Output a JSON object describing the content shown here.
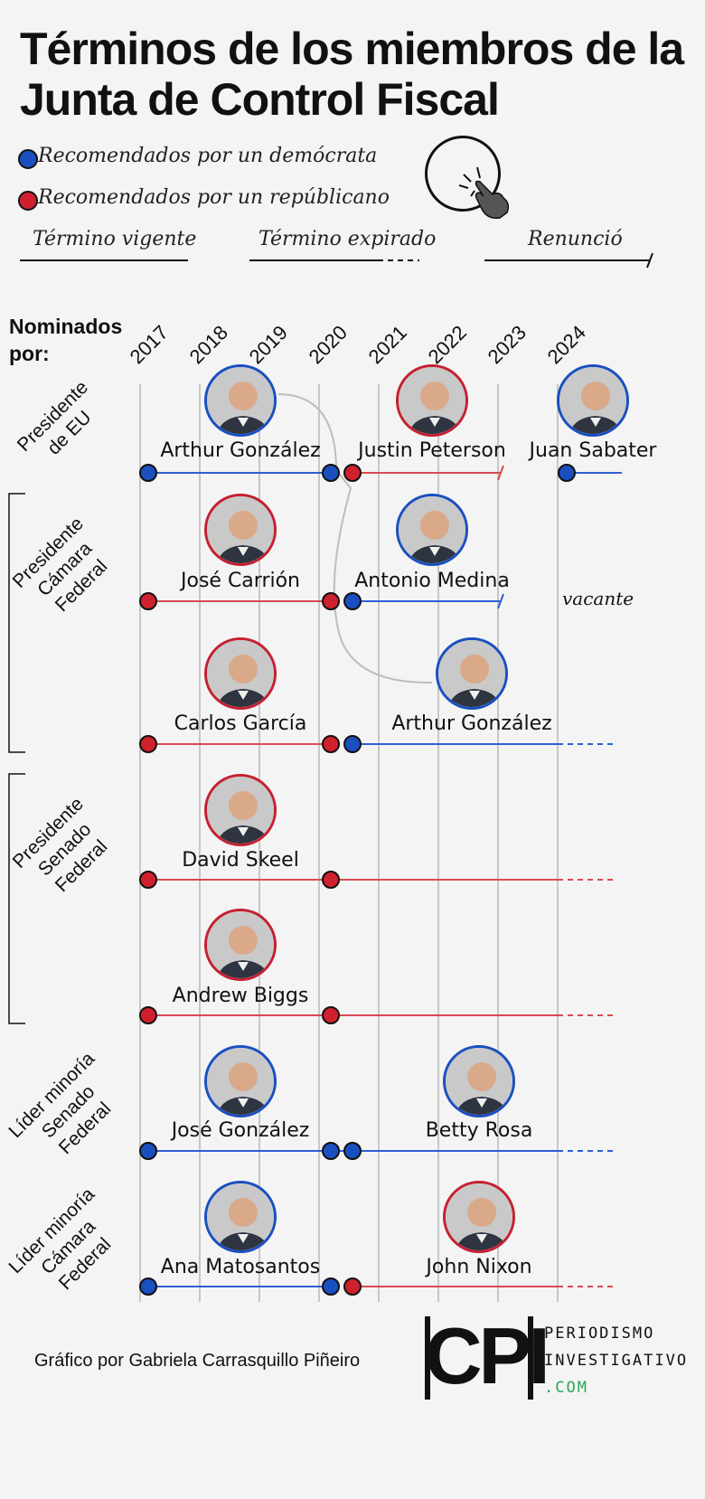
{
  "title_line1": "Términos de los miembros de la",
  "title_line2": "Junta de Control Fiscal",
  "legend": {
    "democrat": "Recomendados por un demócrata",
    "republican": "Recomendados por un repúblicano",
    "current": "Término vigente",
    "expired": "Término expirado",
    "resigned": "Renunció"
  },
  "nominated_by_line1": "Nominados",
  "nominated_by_line2": "por:",
  "years": [
    "2017",
    "2018",
    "2019",
    "2020",
    "2021",
    "2022",
    "2023",
    "2024"
  ],
  "groups": [
    {
      "line1": "Presidente",
      "line2": "de EU",
      "line3": ""
    },
    {
      "line1": "Presidente",
      "line2": "Cámara",
      "line3": "Federal"
    },
    {
      "line1": "Presidente",
      "line2": "Senado",
      "line3": "Federal"
    },
    {
      "line1": "Líder minoría",
      "line2": "Senado",
      "line3": "Federal"
    },
    {
      "line1": "Líder minoría",
      "line2": "Cámara",
      "line3": "Federal"
    }
  ],
  "members": [
    {
      "name": "Arthur González",
      "party": "democrat"
    },
    {
      "name": "Justin Peterson",
      "party": "republican"
    },
    {
      "name": "Juan Sabater",
      "party": "democrat"
    },
    {
      "name": "José Carrión",
      "party": "republican"
    },
    {
      "name": "Antonio Medina",
      "party": "democrat"
    },
    {
      "name": "Carlos García",
      "party": "republican"
    },
    {
      "name": "Arthur González",
      "party": "democrat"
    },
    {
      "name": "David Skeel",
      "party": "republican"
    },
    {
      "name": "Andrew Biggs",
      "party": "republican"
    },
    {
      "name": "José González",
      "party": "democrat"
    },
    {
      "name": "Betty Rosa",
      "party": "democrat"
    },
    {
      "name": "Ana Matosantos",
      "party": "democrat"
    },
    {
      "name": "John Nixon",
      "party": "republican"
    }
  ],
  "vacante": "vacante",
  "credit": "Gráfico por Gabriela Carrasquillo Piñeiro",
  "logo": {
    "letters": "CPI",
    "line1": "PERIODISMO",
    "line2": "INVESTIGATIVO",
    "line3": ".COM"
  },
  "colors": {
    "democrat": "#1a4fc0",
    "republican": "#d0202e",
    "blue_line": "#2d5fd3",
    "red_line": "#d84a52"
  }
}
